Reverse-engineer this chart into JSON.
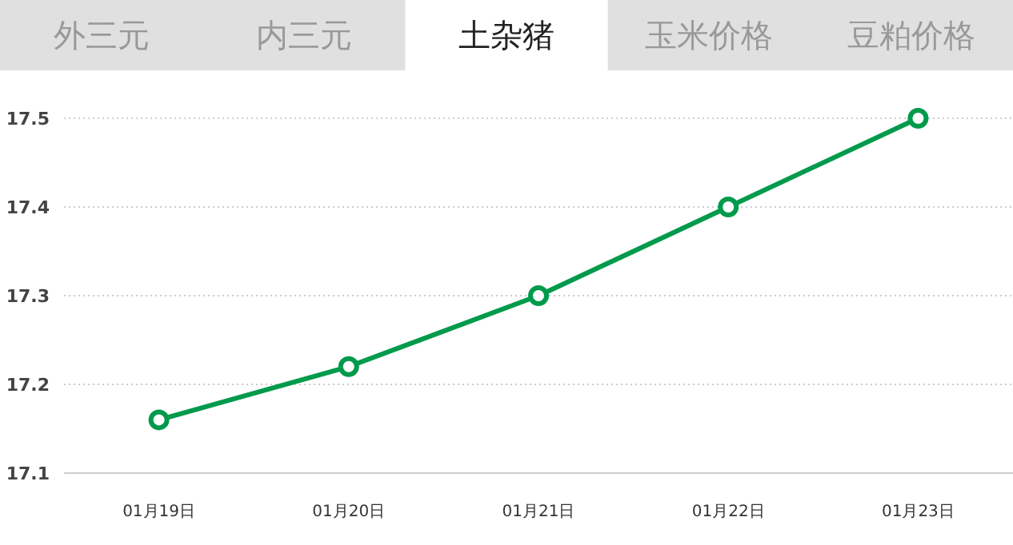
{
  "chart_data": {
    "type": "line",
    "title": "土杂猪",
    "annotations": [
      "外三元",
      "内三元",
      "玉米价格",
      "豆粕价格"
    ],
    "categories": [
      "01月19日",
      "01月20日",
      "01月21日",
      "01月22日",
      "01月23日"
    ],
    "series": [
      {
        "color": "#009a4c",
        "values": [
          17.16,
          17.22,
          17.3,
          17.4,
          17.5
        ]
      }
    ],
    "ylim": [
      17.1,
      17.5
    ],
    "yticks": [
      17.1,
      17.2,
      17.3,
      17.4,
      17.5
    ],
    "grid": "y",
    "marker": "circle",
    "line_style": "solid"
  }
}
